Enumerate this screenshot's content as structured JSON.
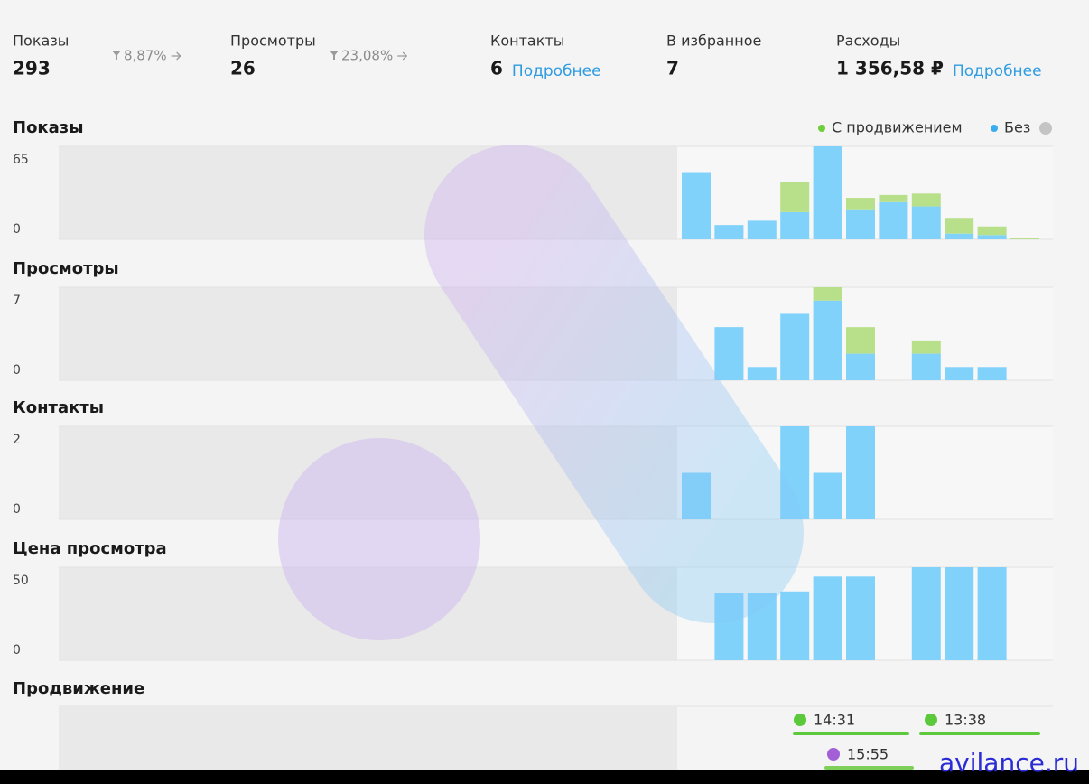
{
  "summary": [
    {
      "label": "Показы",
      "value": "293",
      "change": "8,87%"
    },
    {
      "label": "Просмотры",
      "value": "26",
      "change": "23,08%"
    },
    {
      "label": "Контакты",
      "value": "6",
      "link": "Подробнее"
    },
    {
      "label": "В избранное",
      "value": "7"
    },
    {
      "label": "Расходы",
      "value": "1 356,58 ₽",
      "link": "Подробнее"
    }
  ],
  "chart_data": [
    {
      "type": "bar",
      "title": "Показы",
      "stacked": true,
      "categories": [
        null,
        null,
        null,
        null,
        null,
        null,
        null,
        null,
        null,
        null,
        null
      ],
      "series": [
        {
          "name": "С продвижением",
          "color": "#b8e08a",
          "values": [
            0,
            0,
            0,
            21,
            0,
            8,
            5,
            9,
            11,
            6,
            1
          ]
        },
        {
          "name": "Без",
          "color": "#80d2fb",
          "values": [
            47,
            10,
            13,
            19,
            65,
            21,
            26,
            23,
            4,
            3,
            0
          ]
        }
      ],
      "ylim": [
        0,
        65
      ],
      "yticks": [
        0,
        65
      ]
    },
    {
      "type": "bar",
      "title": "Просмотры",
      "stacked": true,
      "categories": [
        null,
        null,
        null,
        null,
        null,
        null,
        null,
        null,
        null,
        null,
        null
      ],
      "series": [
        {
          "color": "#b8e08a",
          "values": [
            0,
            0,
            0,
            0,
            1,
            2,
            0,
            1,
            0,
            0,
            0
          ]
        },
        {
          "color": "#80d2fb",
          "values": [
            0,
            4,
            1,
            5,
            6,
            2,
            0,
            2,
            1,
            1,
            0
          ]
        }
      ],
      "ylim": [
        0,
        7
      ],
      "yticks": [
        0,
        7
      ]
    },
    {
      "type": "bar",
      "title": "Контакты",
      "categories": [
        null,
        null,
        null,
        null,
        null,
        null,
        null,
        null,
        null,
        null,
        null
      ],
      "color": "#80d2fb",
      "values": [
        1,
        0,
        0,
        2,
        1,
        2,
        0,
        0,
        0,
        0,
        0
      ],
      "ylim": [
        0,
        2
      ],
      "yticks": [
        0,
        2
      ]
    },
    {
      "type": "bar",
      "title": "Цена просмотра",
      "categories": [
        null,
        null,
        null,
        null,
        null,
        null,
        null,
        null,
        null,
        null,
        null
      ],
      "color": "#80d2fb",
      "values": [
        0,
        36,
        36,
        37,
        45,
        45,
        0,
        50,
        50,
        50,
        0
      ],
      "ylim": [
        0,
        50
      ],
      "yticks": [
        0,
        50
      ]
    }
  ],
  "promotion": {
    "title": "Продвижение",
    "events": [
      {
        "time": "14:31",
        "color": "#5cc83c"
      },
      {
        "time": "13:38",
        "color": "#5cc83c"
      },
      {
        "time": "15:55",
        "color": "#a35fd6"
      }
    ]
  },
  "watermark": "avilance.ru"
}
